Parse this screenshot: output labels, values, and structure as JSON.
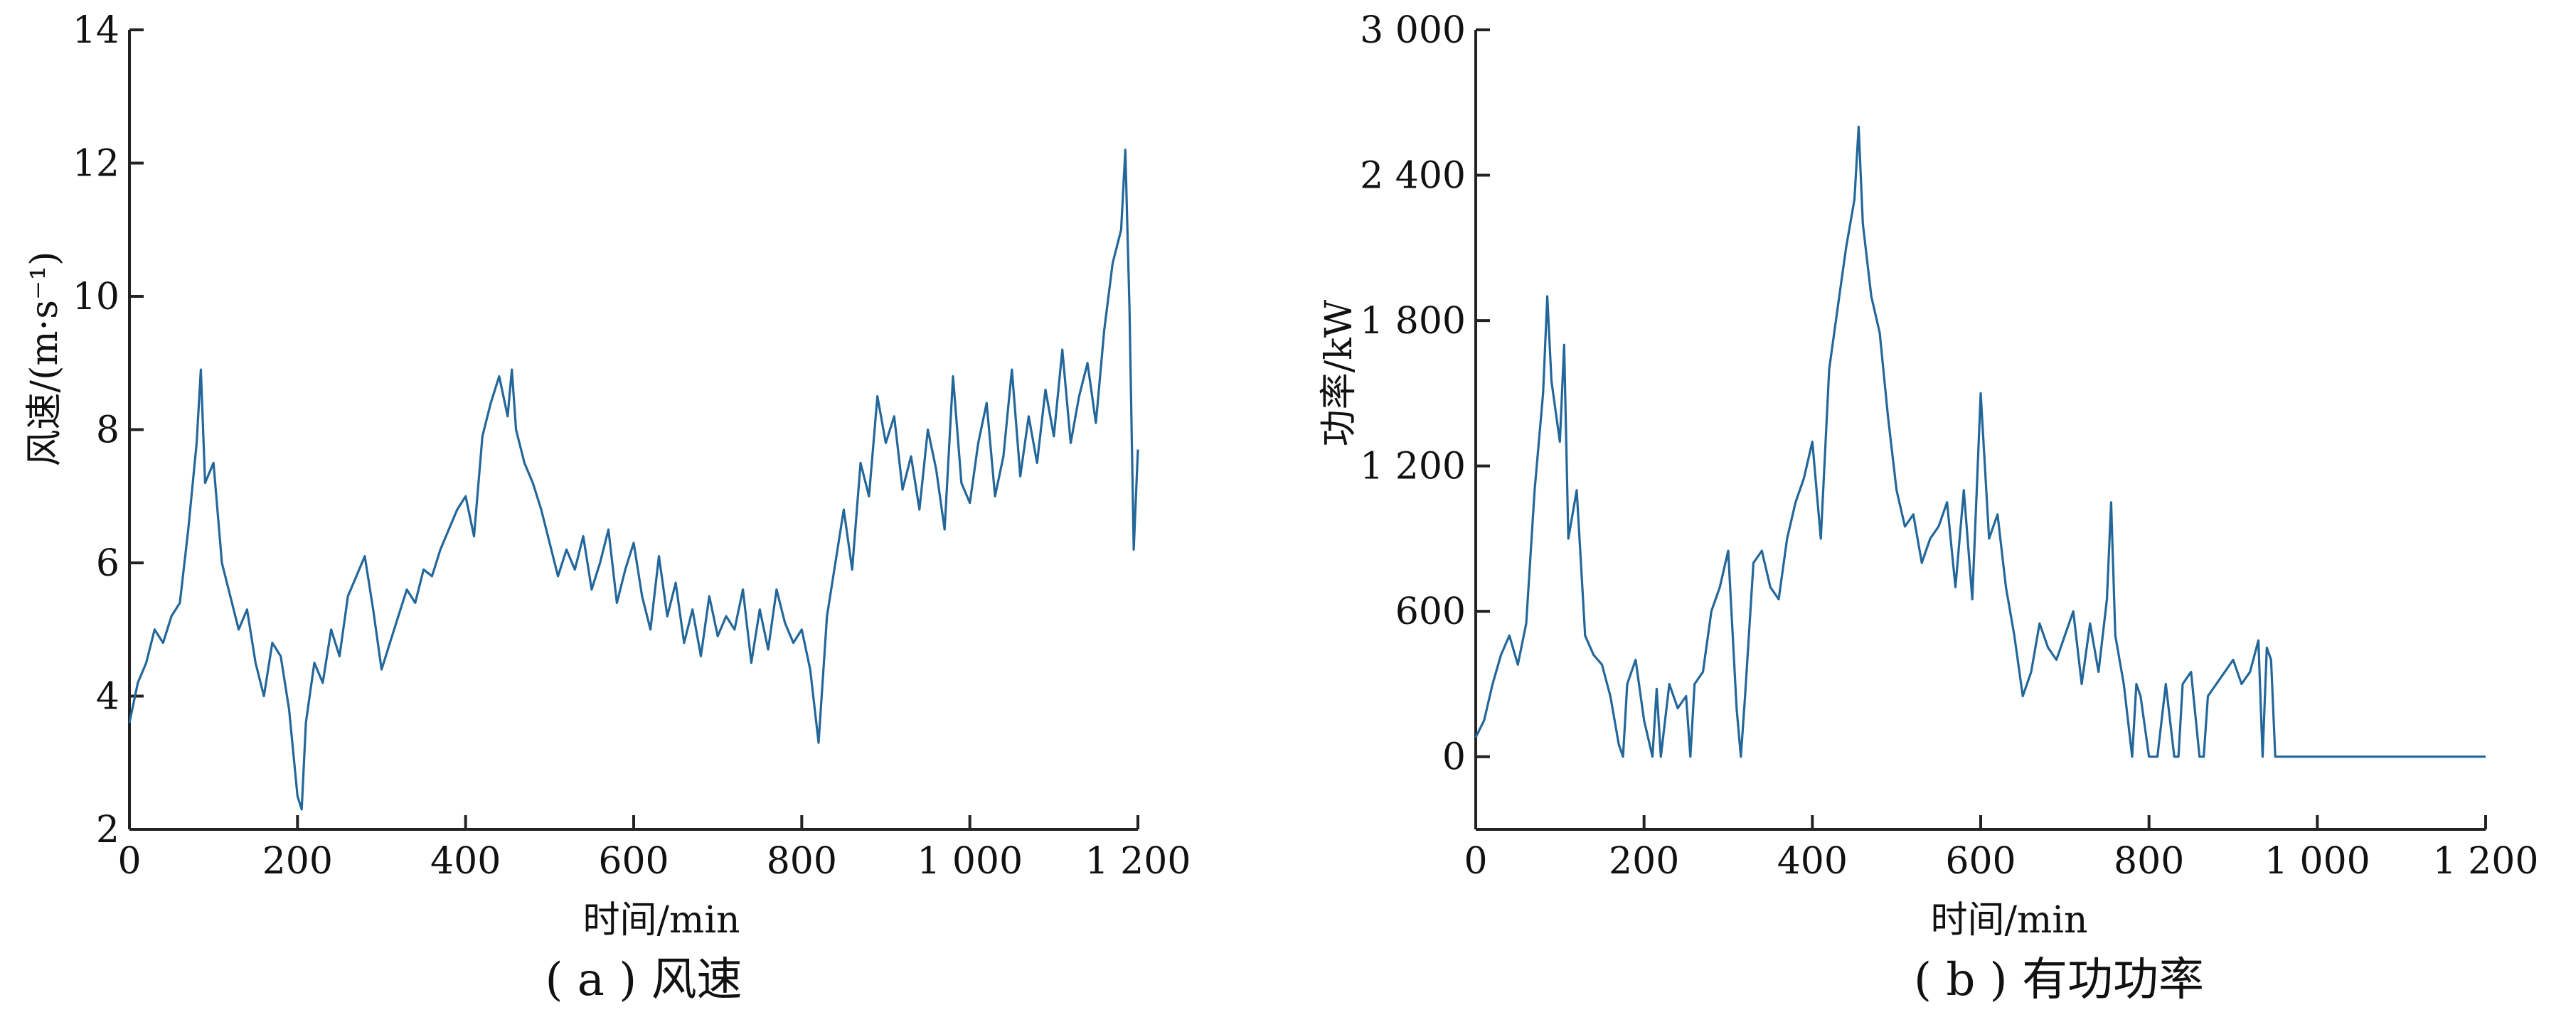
{
  "colors": {
    "series": "#23679a",
    "axis": "#222222",
    "background": "#ffffff"
  },
  "chart_data": [
    {
      "type": "line",
      "caption": "( a ) 风速",
      "xlabel": "时间/min",
      "ylabel": "风速/(m·s⁻¹)",
      "xlim": [
        0,
        1200
      ],
      "ylim": [
        2,
        14
      ],
      "x_ticks": [
        0,
        200,
        400,
        600,
        800,
        1000,
        1200
      ],
      "x_tick_labels": [
        "0",
        "200",
        "400",
        "600",
        "800",
        "1 000",
        "1 200"
      ],
      "y_ticks": [
        2,
        4,
        6,
        8,
        10,
        12,
        14
      ],
      "y_tick_labels": [
        "2",
        "4",
        "6",
        "8",
        "10",
        "12",
        "14"
      ],
      "grid": false,
      "series": [
        {
          "x": [
            0,
            10,
            20,
            30,
            40,
            50,
            60,
            70,
            80,
            85,
            90,
            100,
            110,
            120,
            130,
            140,
            150,
            160,
            170,
            180,
            190,
            200,
            205,
            210,
            220,
            230,
            240,
            250,
            260,
            270,
            280,
            290,
            300,
            310,
            320,
            330,
            340,
            350,
            360,
            370,
            380,
            390,
            400,
            410,
            420,
            430,
            440,
            450,
            455,
            460,
            470,
            480,
            490,
            500,
            510,
            520,
            530,
            540,
            550,
            560,
            570,
            580,
            590,
            600,
            610,
            620,
            630,
            640,
            650,
            660,
            670,
            680,
            690,
            700,
            710,
            720,
            730,
            740,
            750,
            760,
            770,
            780,
            790,
            800,
            810,
            820,
            830,
            840,
            850,
            860,
            870,
            880,
            890,
            900,
            910,
            920,
            930,
            940,
            950,
            960,
            970,
            980,
            990,
            1000,
            1010,
            1020,
            1030,
            1040,
            1050,
            1060,
            1070,
            1080,
            1090,
            1100,
            1110,
            1120,
            1130,
            1140,
            1150,
            1160,
            1170,
            1180,
            1185,
            1190,
            1195,
            1200
          ],
          "values": [
            3.6,
            4.2,
            4.5,
            5.0,
            4.8,
            5.2,
            5.4,
            6.5,
            7.8,
            8.9,
            7.2,
            7.5,
            6.0,
            5.5,
            5.0,
            5.3,
            4.5,
            4.0,
            4.8,
            4.6,
            3.8,
            2.5,
            2.3,
            3.6,
            4.5,
            4.2,
            5.0,
            4.6,
            5.5,
            5.8,
            6.1,
            5.3,
            4.4,
            4.8,
            5.2,
            5.6,
            5.4,
            5.9,
            5.8,
            6.2,
            6.5,
            6.8,
            7.0,
            6.4,
            7.9,
            8.4,
            8.8,
            8.2,
            8.9,
            8.0,
            7.5,
            7.2,
            6.8,
            6.3,
            5.8,
            6.2,
            5.9,
            6.4,
            5.6,
            6.0,
            6.5,
            5.4,
            5.9,
            6.3,
            5.5,
            5.0,
            6.1,
            5.2,
            5.7,
            4.8,
            5.3,
            4.6,
            5.5,
            4.9,
            5.2,
            5.0,
            5.6,
            4.5,
            5.3,
            4.7,
            5.6,
            5.1,
            4.8,
            5.0,
            4.4,
            3.3,
            5.2,
            6.0,
            6.8,
            5.9,
            7.5,
            7.0,
            8.5,
            7.8,
            8.2,
            7.1,
            7.6,
            6.8,
            8.0,
            7.4,
            6.5,
            8.8,
            7.2,
            6.9,
            7.8,
            8.4,
            7.0,
            7.6,
            8.9,
            7.3,
            8.2,
            7.5,
            8.6,
            7.9,
            9.2,
            7.8,
            8.5,
            9.0,
            8.1,
            9.5,
            10.5,
            11.0,
            12.2,
            9.8,
            6.2,
            7.7
          ]
        }
      ]
    },
    {
      "type": "line",
      "caption": "( b ) 有功功率",
      "xlabel": "时间/min",
      "ylabel": "功率/kW",
      "xlim": [
        0,
        1200
      ],
      "ylim": [
        -300,
        3000
      ],
      "x_ticks": [
        0,
        200,
        400,
        600,
        800,
        1000,
        1200
      ],
      "x_tick_labels": [
        "0",
        "200",
        "400",
        "600",
        "800",
        "1 000",
        "1 200"
      ],
      "y_ticks": [
        0,
        600,
        1200,
        1800,
        2400,
        3000
      ],
      "y_tick_labels": [
        "0",
        "600",
        "1 200",
        "1 800",
        "2 400",
        "3 000"
      ],
      "grid": false,
      "series": [
        {
          "x": [
            0,
            10,
            20,
            30,
            40,
            50,
            60,
            70,
            80,
            85,
            90,
            100,
            105,
            110,
            120,
            130,
            140,
            150,
            160,
            170,
            175,
            180,
            190,
            200,
            210,
            215,
            220,
            230,
            240,
            250,
            255,
            260,
            270,
            280,
            290,
            300,
            310,
            315,
            320,
            330,
            340,
            350,
            360,
            370,
            380,
            390,
            400,
            410,
            420,
            430,
            440,
            450,
            455,
            460,
            470,
            480,
            490,
            500,
            510,
            520,
            530,
            540,
            550,
            560,
            570,
            580,
            590,
            600,
            610,
            620,
            630,
            640,
            650,
            660,
            670,
            680,
            690,
            700,
            710,
            720,
            730,
            740,
            750,
            755,
            760,
            770,
            780,
            785,
            790,
            800,
            810,
            820,
            830,
            835,
            840,
            850,
            860,
            865,
            870,
            880,
            890,
            900,
            910,
            920,
            930,
            935,
            940,
            945,
            950,
            960,
            1000,
            1100,
            1200
          ],
          "values": [
            80,
            150,
            300,
            420,
            500,
            380,
            550,
            1100,
            1500,
            1900,
            1550,
            1300,
            1700,
            900,
            1100,
            500,
            420,
            380,
            250,
            50,
            0,
            300,
            400,
            150,
            0,
            280,
            0,
            300,
            200,
            250,
            0,
            300,
            350,
            600,
            700,
            850,
            200,
            0,
            250,
            800,
            850,
            700,
            650,
            900,
            1050,
            1150,
            1300,
            900,
            1600,
            1850,
            2100,
            2300,
            2600,
            2200,
            1900,
            1750,
            1400,
            1100,
            950,
            1000,
            800,
            900,
            950,
            1050,
            700,
            1100,
            650,
            1500,
            900,
            1000,
            700,
            500,
            250,
            350,
            550,
            450,
            400,
            500,
            600,
            300,
            550,
            350,
            650,
            1050,
            500,
            300,
            0,
            300,
            250,
            0,
            0,
            300,
            0,
            0,
            300,
            350,
            0,
            0,
            250,
            300,
            350,
            400,
            300,
            350,
            480,
            0,
            450,
            400,
            0,
            0,
            0,
            0,
            0
          ]
        }
      ]
    }
  ]
}
